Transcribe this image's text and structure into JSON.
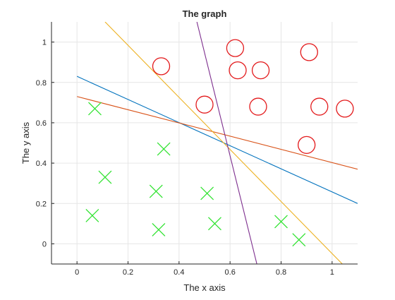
{
  "chart_data": {
    "type": "scatter",
    "title": "The graph",
    "xlabel": "The x axis",
    "ylabel": "The y axis",
    "xlim": [
      -0.1,
      1.1
    ],
    "ylim": [
      -0.1,
      1.1
    ],
    "xticks": [
      0,
      0.2,
      0.4,
      0.6,
      0.8,
      1
    ],
    "yticks": [
      0,
      0.2,
      0.4,
      0.6,
      0.8,
      1
    ],
    "grid": true,
    "legend": "none",
    "series": [
      {
        "marker": "circle",
        "color": "#e31a1c",
        "points": [
          [
            0.33,
            0.88
          ],
          [
            0.5,
            0.69
          ],
          [
            0.62,
            0.97
          ],
          [
            0.63,
            0.86
          ],
          [
            0.72,
            0.86
          ],
          [
            0.71,
            0.68
          ],
          [
            0.91,
            0.95
          ],
          [
            0.95,
            0.68
          ],
          [
            1.05,
            0.67
          ],
          [
            0.9,
            0.49
          ]
        ]
      },
      {
        "marker": "cross",
        "color": "#33e333",
        "points": [
          [
            0.07,
            0.67
          ],
          [
            0.34,
            0.47
          ],
          [
            0.11,
            0.33
          ],
          [
            0.31,
            0.26
          ],
          [
            0.51,
            0.25
          ],
          [
            0.06,
            0.14
          ],
          [
            0.32,
            0.07
          ],
          [
            0.54,
            0.1
          ],
          [
            0.8,
            0.11
          ],
          [
            0.87,
            0.02
          ]
        ]
      }
    ],
    "lines": [
      {
        "color": "#0072bd",
        "from": [
          0,
          0.83
        ],
        "to": [
          1.1,
          0.2
        ]
      },
      {
        "color": "#d95319",
        "from": [
          0,
          0.73
        ],
        "to": [
          1.1,
          0.37
        ]
      },
      {
        "color": "#edb120",
        "from": [
          0.11,
          1.1
        ],
        "to": [
          1.04,
          -0.1
        ]
      },
      {
        "color": "#7e2f8e",
        "from": [
          0.47,
          1.1
        ],
        "to": [
          0.705,
          -0.1
        ]
      }
    ]
  }
}
